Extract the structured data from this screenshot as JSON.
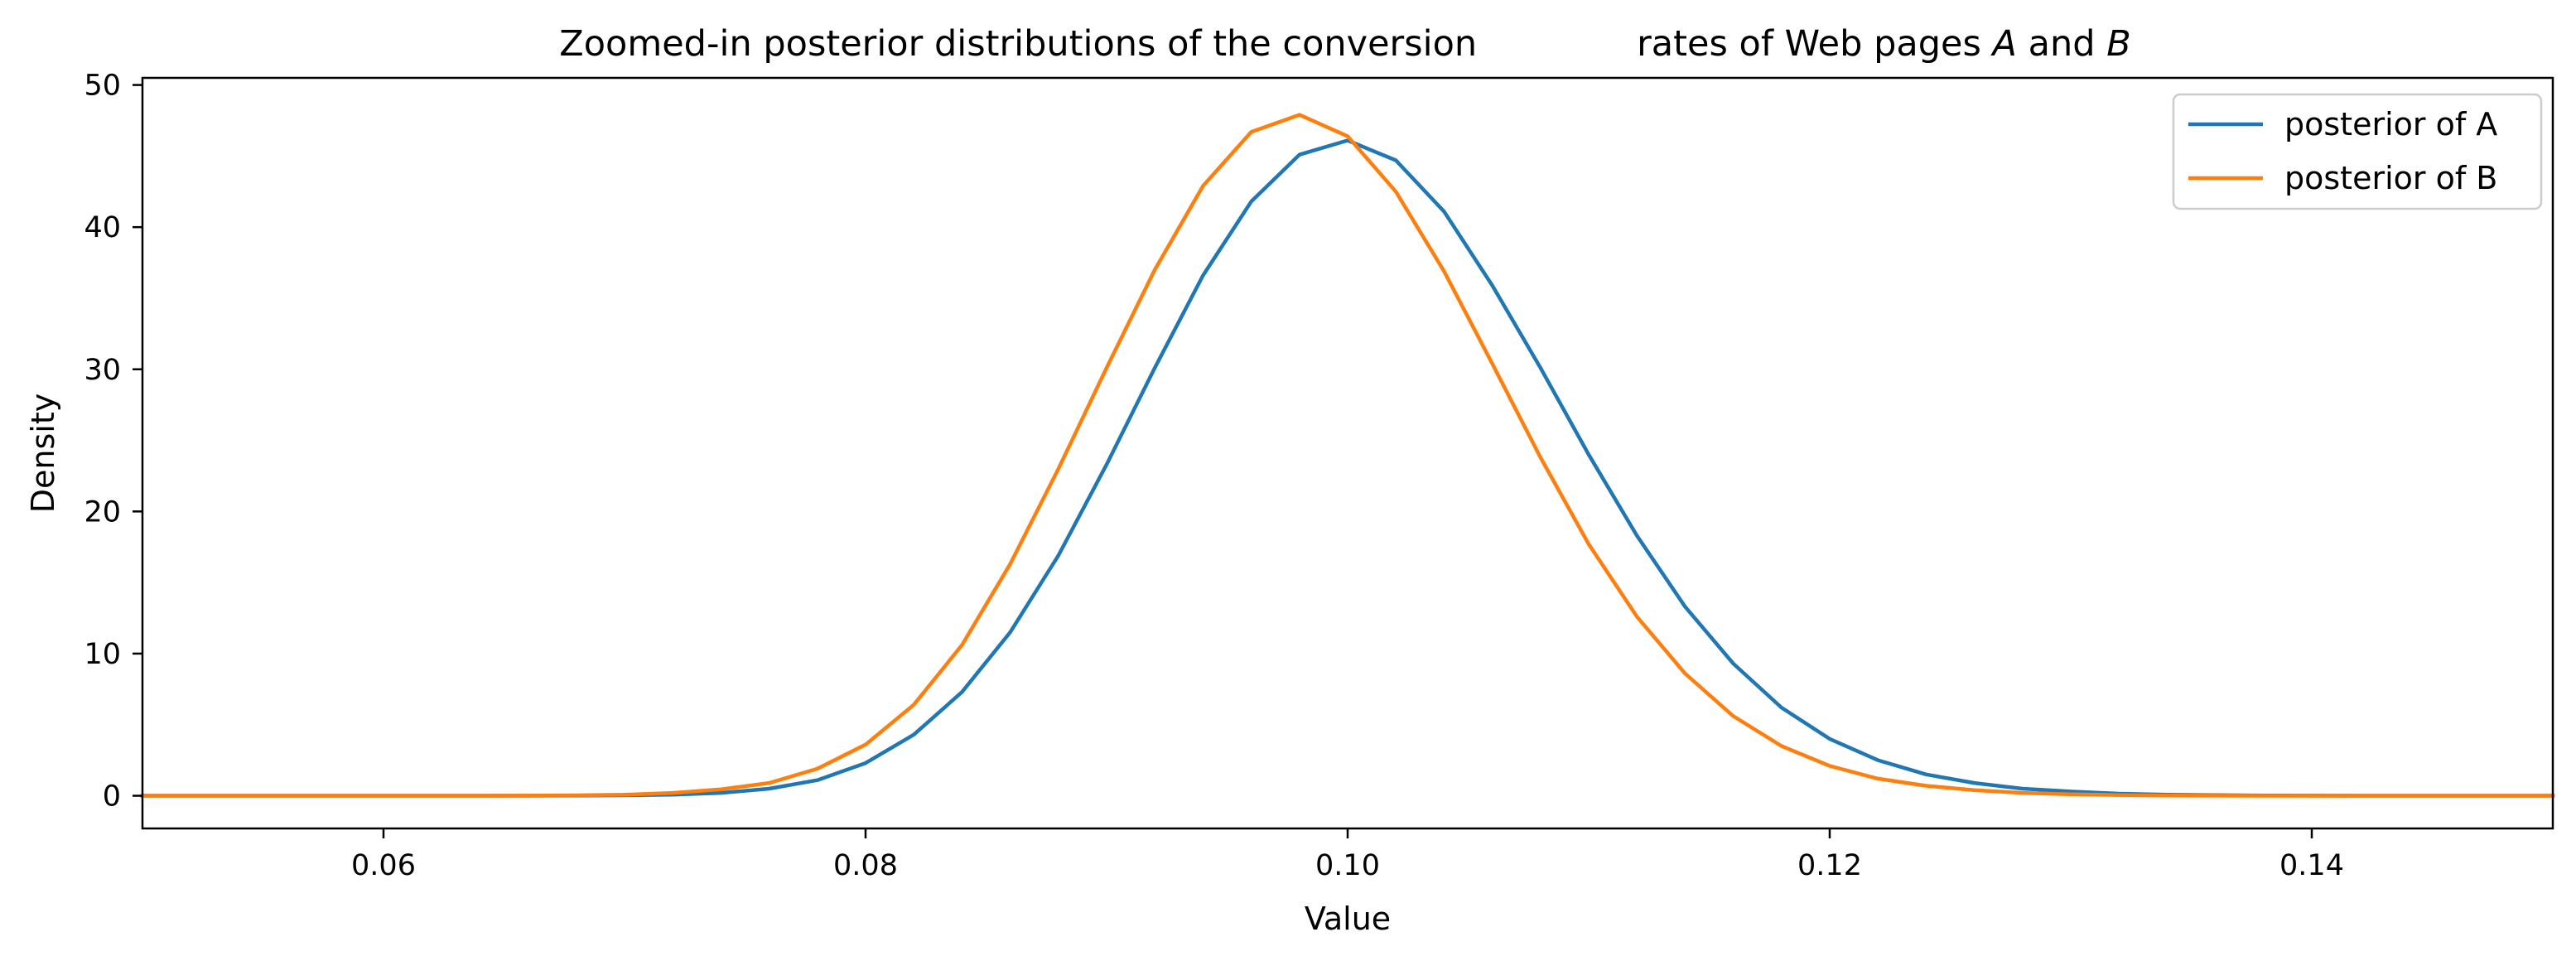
{
  "chart_data": {
    "type": "line",
    "title": "Zoomed-in posterior distributions of the conversion   rates of Web pages A and B",
    "title_parts": {
      "left": "Zoomed-in posterior distributions of the conversion",
      "right_a": "rates of Web pages ",
      "var_a": "A",
      "mid": " and ",
      "var_b": "B"
    },
    "xlabel": "Value",
    "ylabel": "Density",
    "xlim": [
      0.05,
      0.15
    ],
    "ylim": [
      -2.3,
      50.5
    ],
    "xticks": [
      0.06,
      0.08,
      0.1,
      0.12,
      0.14
    ],
    "xtick_labels": [
      "0.06",
      "0.08",
      "0.10",
      "0.12",
      "0.14"
    ],
    "yticks": [
      0,
      10,
      20,
      30,
      40,
      50
    ],
    "ytick_labels": [
      "0",
      "10",
      "20",
      "30",
      "40",
      "50"
    ],
    "grid": false,
    "legend_position": "top-right",
    "x": [
      0.05,
      0.052,
      0.054,
      0.056,
      0.058,
      0.06,
      0.062,
      0.064,
      0.066,
      0.068,
      0.07,
      0.072,
      0.074,
      0.076,
      0.078,
      0.08,
      0.082,
      0.084,
      0.086,
      0.088,
      0.09,
      0.092,
      0.094,
      0.096,
      0.098,
      0.1,
      0.102,
      0.104,
      0.106,
      0.108,
      0.11,
      0.112,
      0.114,
      0.116,
      0.118,
      0.12,
      0.122,
      0.124,
      0.126,
      0.128,
      0.13,
      0.132,
      0.134,
      0.136,
      0.138,
      0.14,
      0.142,
      0.144,
      0.146,
      0.148,
      0.15
    ],
    "series": [
      {
        "name": "posterior of A",
        "color": "#1f77b4",
        "values": [
          0,
          0,
          0,
          0,
          0,
          0,
          0,
          0,
          0,
          0.01,
          0.03,
          0.08,
          0.2,
          0.5,
          1.1,
          2.3,
          4.3,
          7.3,
          11.5,
          16.9,
          23.3,
          30.1,
          36.6,
          41.8,
          45.1,
          46.1,
          44.7,
          41.1,
          35.9,
          30.1,
          24.0,
          18.3,
          13.3,
          9.3,
          6.2,
          4.0,
          2.5,
          1.5,
          0.9,
          0.5,
          0.3,
          0.15,
          0.08,
          0.04,
          0.02,
          0.01,
          0,
          0,
          0,
          0,
          0
        ]
      },
      {
        "name": "posterior of B",
        "color": "#ff7f0e",
        "values": [
          0,
          0,
          0,
          0,
          0,
          0,
          0,
          0,
          0.01,
          0.03,
          0.07,
          0.2,
          0.45,
          0.9,
          1.9,
          3.6,
          6.4,
          10.6,
          16.3,
          23.0,
          30.1,
          37.0,
          42.9,
          46.7,
          47.9,
          46.4,
          42.5,
          36.9,
          30.4,
          23.8,
          17.7,
          12.6,
          8.6,
          5.6,
          3.5,
          2.1,
          1.2,
          0.7,
          0.4,
          0.2,
          0.1,
          0.05,
          0.02,
          0.01,
          0,
          0,
          0,
          0,
          0,
          0,
          0
        ]
      }
    ]
  }
}
